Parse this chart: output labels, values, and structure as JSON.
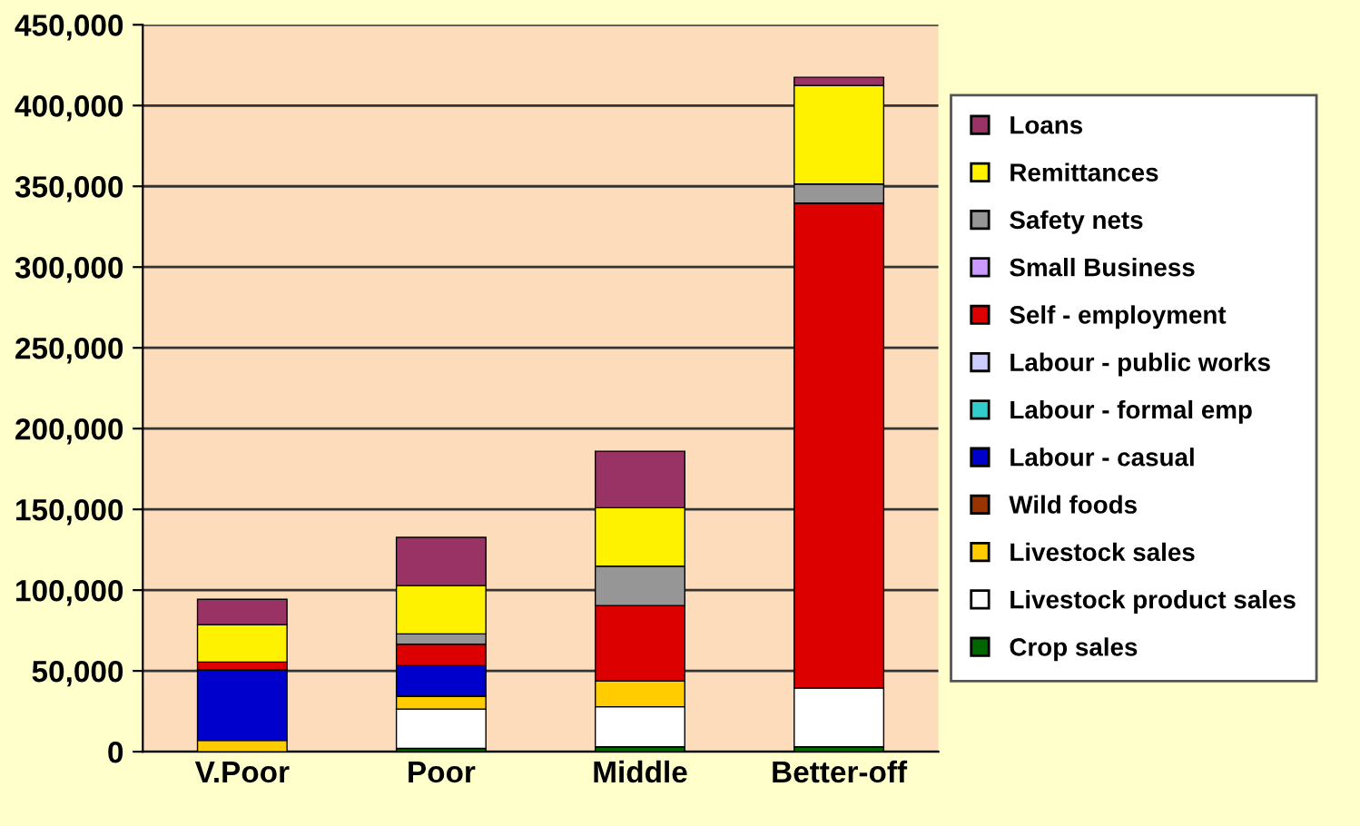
{
  "chart_data": {
    "type": "bar",
    "stacked": true,
    "categories": [
      "V.Poor",
      "Poor",
      "Middle",
      "Better-off"
    ],
    "series": [
      {
        "name": "Crop sales",
        "color": "#006600",
        "values": [
          null,
          2000,
          3000,
          3000
        ]
      },
      {
        "name": "Livestock product sales",
        "color": "#ffffff",
        "values": [
          0,
          24400,
          24800,
          36600
        ]
      },
      {
        "name": "Livestock sales",
        "color": "#ffcc00",
        "values": [
          7000,
          7900,
          16100,
          0
        ]
      },
      {
        "name": "Wild foods",
        "color": "#993300",
        "values": [
          0,
          0,
          0,
          0
        ]
      },
      {
        "name": "Labour - casual",
        "color": "#0000cc",
        "values": [
          43800,
          18900,
          0,
          0
        ]
      },
      {
        "name": "Labour - formal emp",
        "color": "#33cccc",
        "values": [
          0,
          0,
          0,
          0
        ]
      },
      {
        "name": "Labour - public works",
        "color": "#ccccff",
        "values": [
          0,
          0,
          0,
          0
        ]
      },
      {
        "name": "Self - employment",
        "color": "#dd0000",
        "values": [
          4700,
          13400,
          46500,
          300000
        ]
      },
      {
        "name": "Small Business",
        "color": "#cc99ff",
        "values": [
          0,
          0,
          0,
          0
        ]
      },
      {
        "name": "Safety nets",
        "color": "#969696",
        "values": [
          0,
          6300,
          24400,
          11800
        ]
      },
      {
        "name": "Remittances",
        "color": "#fff200",
        "values": [
          23100,
          29900,
          36200,
          61000
        ]
      },
      {
        "name": "Loans",
        "color": "#993366",
        "values": [
          15700,
          29900,
          35000,
          5100
        ]
      }
    ],
    "ylim": [
      0,
      450000
    ],
    "yticks": [
      {
        "value": 0,
        "label": "0"
      },
      {
        "value": 50000,
        "label": "50,000"
      },
      {
        "value": 100000,
        "label": "100,000"
      },
      {
        "value": 150000,
        "label": "150,000"
      },
      {
        "value": 200000,
        "label": "200,000"
      },
      {
        "value": 250000,
        "label": "250,000"
      },
      {
        "value": 300000,
        "label": "300,000"
      },
      {
        "value": 350000,
        "label": "350,000"
      },
      {
        "value": 400000,
        "label": "400,000"
      },
      {
        "value": 450000,
        "label": "450,000"
      }
    ],
    "grid": "y",
    "legend": "right"
  }
}
